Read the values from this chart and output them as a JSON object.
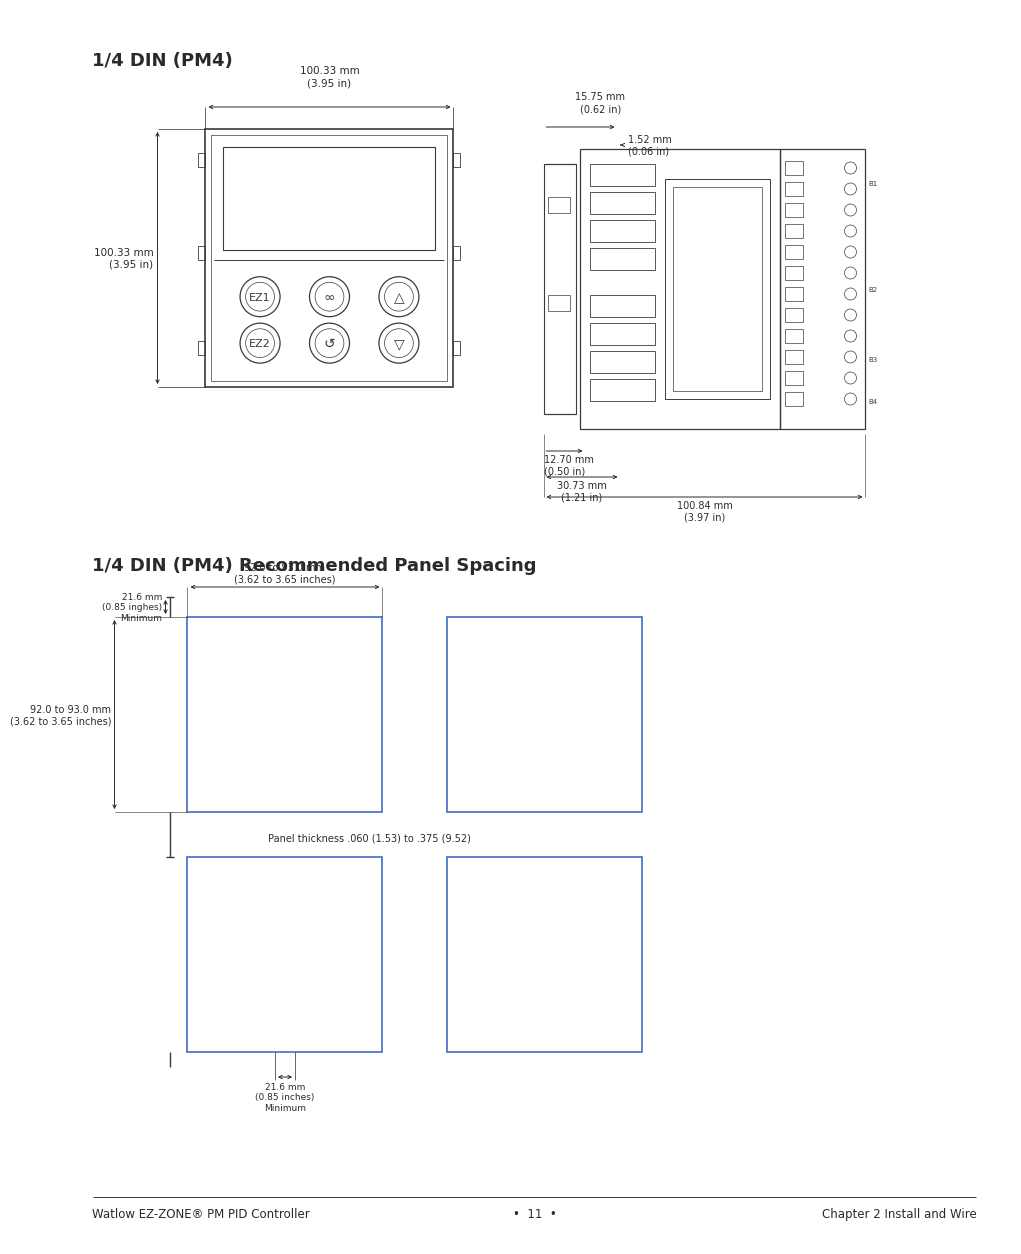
{
  "title1": "1/4 DIN (PM4)",
  "title2": "1/4 DIN (PM4) Recommended Panel Spacing",
  "footer_left": "Watlow EZ-ZONE® PM PID Controller",
  "footer_center": "•  11  •",
  "footer_right": "Chapter 2 Install and Wire",
  "bg_color": "#ffffff",
  "text_color": "#2a2a2a",
  "line_color": "#3a3a3a",
  "dim_color": "#2a2a2a",
  "blue_color": "#3060c0",
  "front_dim_width": "100.33 mm\n(3.95 in)",
  "front_dim_height": "100.33 mm\n(3.95 in)",
  "side_dim1": "15.75 mm\n(0.62 in)",
  "side_dim2": "1.52 mm\n(0.06 in)",
  "side_dim3": "12.70 mm\n(0.50 in)",
  "side_dim4": "30.73 mm\n(1.21 in)",
  "side_dim5": "100.84 mm\n(3.97 in)",
  "spacing_dim_w": "92.0 to 93.0 mm\n(3.62 to 3.65 inches)",
  "spacing_dim_h": "92.0 to 93.0 mm\n(3.62 to 3.65 inches)",
  "spacing_dim_min1": "21.6 mm\n(0.85 inghes)\nMinimum",
  "spacing_dim_min2": "21.6 mm\n(0.85 inches)\nMinimum",
  "panel_thickness": "Panel thickness .060 (1.53) to .375 (9.52)"
}
